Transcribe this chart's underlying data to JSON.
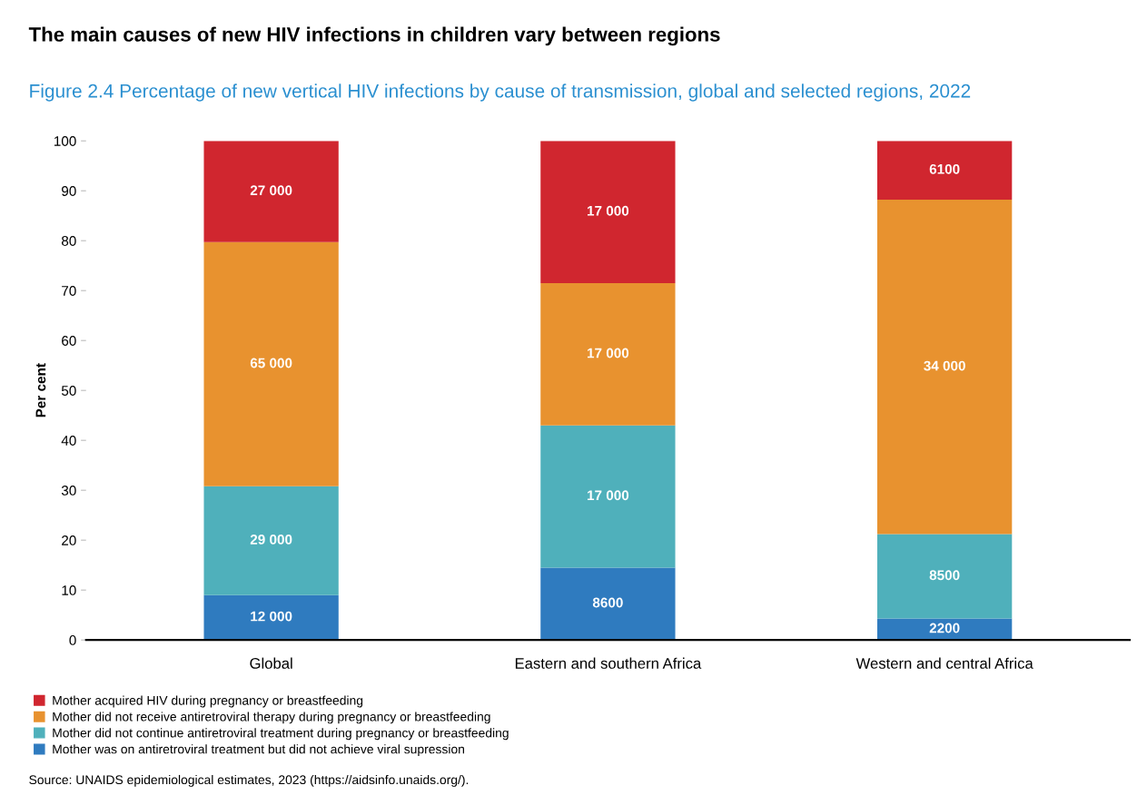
{
  "chart_data": {
    "type": "bar",
    "stacked": true,
    "title": "The main causes of new HIV infections in children vary between regions",
    "subtitle": "Figure 2.4 Percentage of new vertical HIV infections by cause of transmission, global and selected regions, 2022",
    "ylabel": "Per cent",
    "categories": [
      "Global",
      "Eastern and southern Africa",
      "Western and central Africa"
    ],
    "series": [
      {
        "name": "Mother was on antiretroviral treatment but did not achieve viral supression",
        "color": "#2f7bbf",
        "values": [
          9.0,
          14.5,
          4.3
        ]
      },
      {
        "name": "Mother did not continue antiretroviral treatment during pregnancy or breastfeeding",
        "color": "#4fb0bb",
        "values": [
          21.8,
          28.5,
          16.9
        ]
      },
      {
        "name": "Mother did not receive antiretroviral therapy during pregnancy or breastfeeding",
        "color": "#e8922f",
        "values": [
          48.9,
          28.5,
          67.0
        ]
      },
      {
        "name": "Mother acquired HIV during pregnancy or breastfeeding",
        "color": "#d0262f",
        "values": [
          20.3,
          28.5,
          11.8
        ]
      }
    ],
    "ylim": [
      0,
      100
    ],
    "yticks": [
      0,
      10,
      20,
      30,
      40,
      50,
      60,
      70,
      80,
      90,
      100
    ],
    "grid": false,
    "legend": "bottom",
    "annotations": [
      "12 000",
      "8600",
      "2200",
      "29 000",
      "17 000",
      "8500",
      "65 000",
      "17 000",
      "34 000",
      "27 000",
      "17 000",
      "6100",
      "Source: UNAIDS epidemiological estimates, 2023 (https://aidsinfo.unaids.org/)."
    ]
  }
}
